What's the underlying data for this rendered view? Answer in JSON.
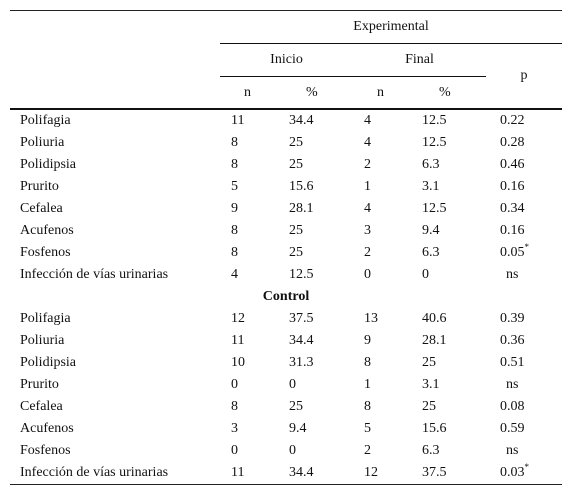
{
  "header": {
    "group": "Experimental",
    "inicio": "Inicio",
    "final": "Final",
    "p": "p",
    "n1": "n",
    "pct1": "%",
    "n2": "n",
    "pct2": "%"
  },
  "experimental_rows": [
    {
      "label": "Polifagia",
      "n1": "11",
      "pct1": "34.4",
      "n2": "4",
      "pct2": "12.5",
      "p": "0.22",
      "sig": ""
    },
    {
      "label": "Poliuria",
      "n1": "8",
      "pct1": "25",
      "n2": "4",
      "pct2": "12.5",
      "p": "0.28",
      "sig": ""
    },
    {
      "label": "Polidipsia",
      "n1": "8",
      "pct1": "25",
      "n2": "2",
      "pct2": "6.3",
      "p": "0.46",
      "sig": ""
    },
    {
      "label": "Prurito",
      "n1": "5",
      "pct1": "15.6",
      "n2": "1",
      "pct2": "3.1",
      "p": "0.16",
      "sig": ""
    },
    {
      "label": "Cefalea",
      "n1": "9",
      "pct1": "28.1",
      "n2": "4",
      "pct2": "12.5",
      "p": "0.34",
      "sig": ""
    },
    {
      "label": "Acufenos",
      "n1": "8",
      "pct1": "25",
      "n2": "3",
      "pct2": "9.4",
      "p": "0.16",
      "sig": ""
    },
    {
      "label": "Fosfenos",
      "n1": "8",
      "pct1": "25",
      "n2": "2",
      "pct2": "6.3",
      "p": "0.05",
      "sig": "*"
    },
    {
      "label": "Infección de vías urinarias",
      "n1": "4",
      "pct1": "12.5",
      "n2": "0",
      "pct2": "0",
      "p": "ns",
      "sig": ""
    }
  ],
  "control_title": "Control",
  "control_rows": [
    {
      "label": "Polifagia",
      "n1": "12",
      "pct1": "37.5",
      "n2": "13",
      "pct2": "40.6",
      "p": "0.39",
      "sig": ""
    },
    {
      "label": "Poliuria",
      "n1": "11",
      "pct1": "34.4",
      "n2": "9",
      "pct2": "28.1",
      "p": "0.36",
      "sig": ""
    },
    {
      "label": "Polidipsia",
      "n1": "10",
      "pct1": "31.3",
      "n2": "8",
      "pct2": "25",
      "p": "0.51",
      "sig": ""
    },
    {
      "label": "Prurito",
      "n1": "0",
      "pct1": "0",
      "n2": "1",
      "pct2": "3.1",
      "p": "ns",
      "sig": ""
    },
    {
      "label": "Cefalea",
      "n1": "8",
      "pct1": "25",
      "n2": "8",
      "pct2": "25",
      "p": "0.08",
      "sig": ""
    },
    {
      "label": "Acufenos",
      "n1": "3",
      "pct1": "9.4",
      "n2": "5",
      "pct2": "15.6",
      "p": "0.59",
      "sig": ""
    },
    {
      "label": "Fosfenos",
      "n1": "0",
      "pct1": "0",
      "n2": "2",
      "pct2": "6.3",
      "p": "ns",
      "sig": ""
    },
    {
      "label": "Infección de vías urinarias",
      "n1": "11",
      "pct1": "34.4",
      "n2": "12",
      "pct2": "37.5",
      "p": "0.03",
      "sig": "*"
    }
  ]
}
